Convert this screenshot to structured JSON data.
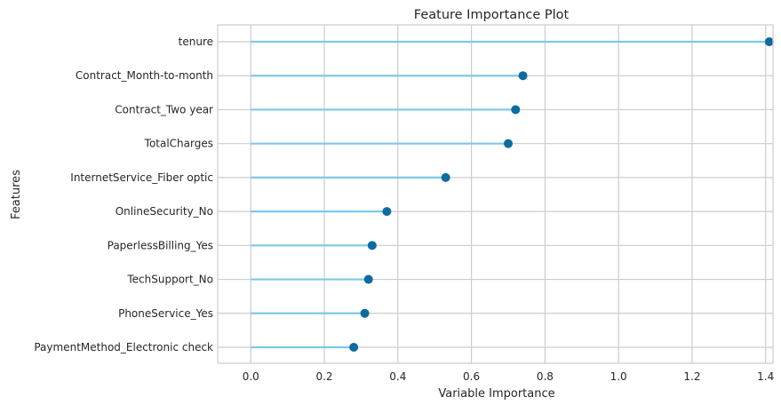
{
  "chart_data": {
    "type": "lollipop",
    "title": "Feature Importance Plot",
    "xlabel": "Variable Importance",
    "ylabel": "Features",
    "xlim": [
      -0.09,
      1.42
    ],
    "xticks": [
      "0.0",
      "0.2",
      "0.4",
      "0.6",
      "0.8",
      "1.0",
      "1.2",
      "1.4"
    ],
    "grid": true,
    "colors": {
      "stem": "#7ec8e8",
      "marker": "#0e6ba0",
      "grid": "#cccccc",
      "frame": "#cccccc"
    },
    "categories": [
      "tenure",
      "Contract_Month-to-month",
      "Contract_Two year",
      "TotalCharges",
      "InternetService_Fiber optic",
      "OnlineSecurity_No",
      "PaperlessBilling_Yes",
      "TechSupport_No",
      "PhoneService_Yes",
      "PaymentMethod_Electronic check"
    ],
    "values": [
      1.41,
      0.74,
      0.72,
      0.7,
      0.53,
      0.37,
      0.33,
      0.32,
      0.31,
      0.28
    ]
  }
}
